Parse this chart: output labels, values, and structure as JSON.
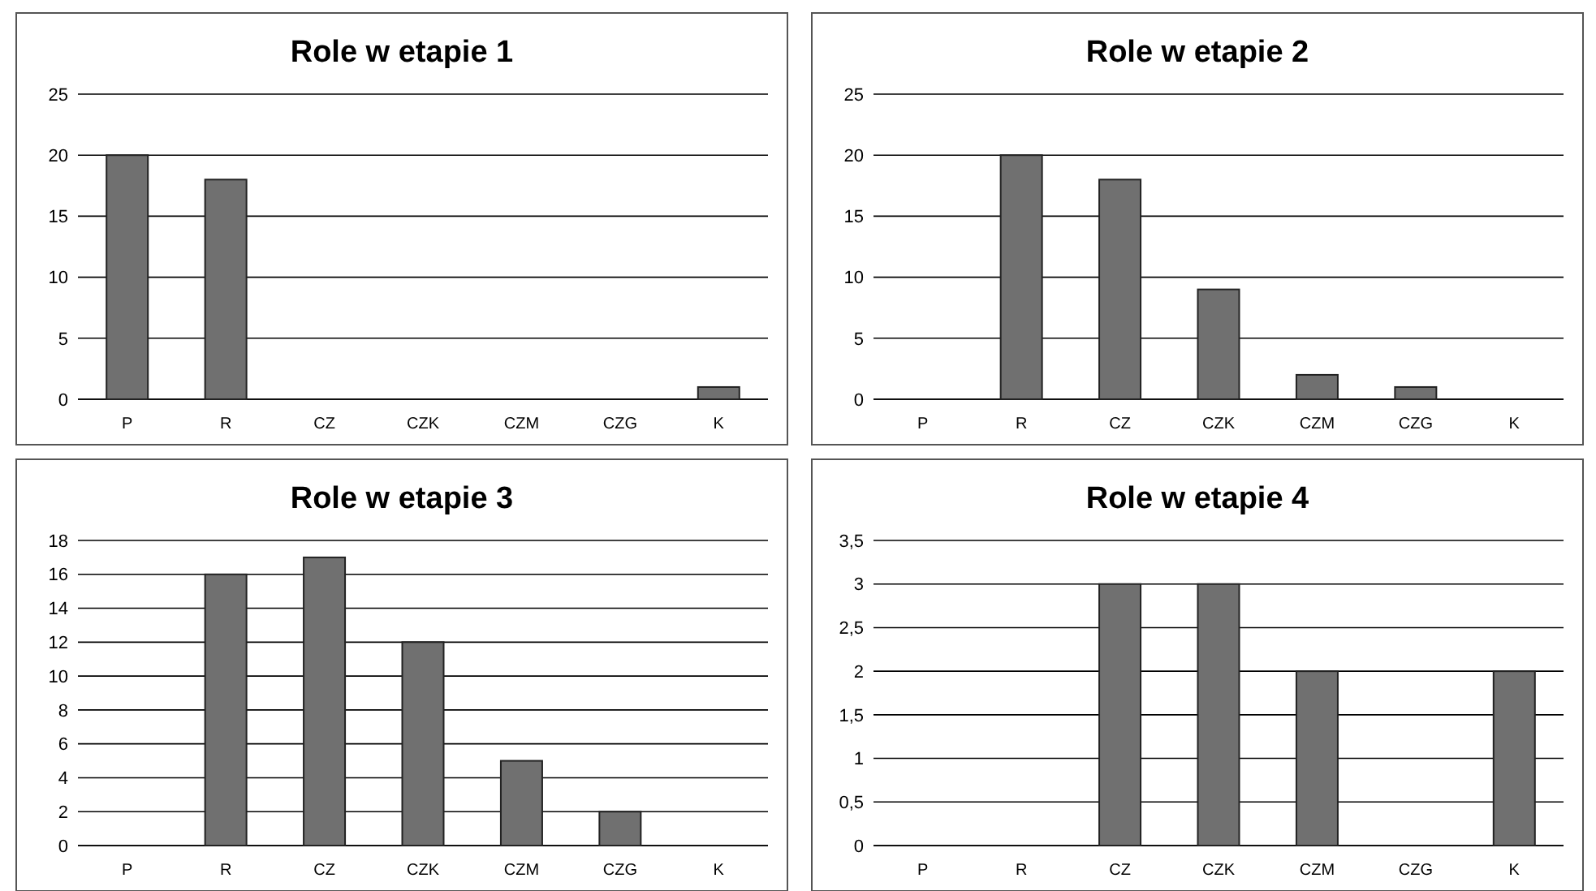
{
  "chart_data": [
    {
      "type": "bar",
      "title": "Role w etapie 1",
      "categories": [
        "P",
        "R",
        "CZ",
        "CZK",
        "CZM",
        "CZG",
        "K"
      ],
      "values": [
        20,
        18,
        0,
        0,
        0,
        0,
        1
      ],
      "color": "#707070",
      "ylim": [
        0,
        25
      ],
      "yticks": [
        0,
        5,
        10,
        15,
        20,
        25
      ],
      "grid": "y"
    },
    {
      "type": "bar",
      "title": "Role w etapie 2",
      "categories": [
        "P",
        "R",
        "CZ",
        "CZK",
        "CZM",
        "CZG",
        "K"
      ],
      "values": [
        0,
        20,
        18,
        9,
        2,
        1,
        0
      ],
      "color": "#707070",
      "ylim": [
        0,
        25
      ],
      "yticks": [
        0,
        5,
        10,
        15,
        20,
        25
      ],
      "grid": "y"
    },
    {
      "type": "bar",
      "title": "Role w etapie 3",
      "categories": [
        "P",
        "R",
        "CZ",
        "CZK",
        "CZM",
        "CZG",
        "K"
      ],
      "values": [
        0,
        16,
        17,
        12,
        5,
        2,
        0
      ],
      "color": "#707070",
      "ylim": [
        0,
        18
      ],
      "yticks": [
        0,
        2,
        4,
        6,
        8,
        10,
        12,
        14,
        16,
        18
      ],
      "grid": "y"
    },
    {
      "type": "bar",
      "title": "Role w etapie 4",
      "categories": [
        "P",
        "R",
        "CZ",
        "CZK",
        "CZM",
        "CZG",
        "K"
      ],
      "values": [
        0,
        0,
        3,
        3,
        2,
        0,
        2
      ],
      "color": "#707070",
      "ylim": [
        0,
        3.5
      ],
      "yticks": [
        0,
        {
          "value": 0.5,
          "label": "0,5"
        },
        1,
        {
          "value": 1.5,
          "label": "1,5"
        },
        2,
        {
          "value": 2.5,
          "label": "2,5"
        },
        3,
        {
          "value": 3.5,
          "label": "3,5"
        }
      ],
      "grid": "y"
    }
  ]
}
